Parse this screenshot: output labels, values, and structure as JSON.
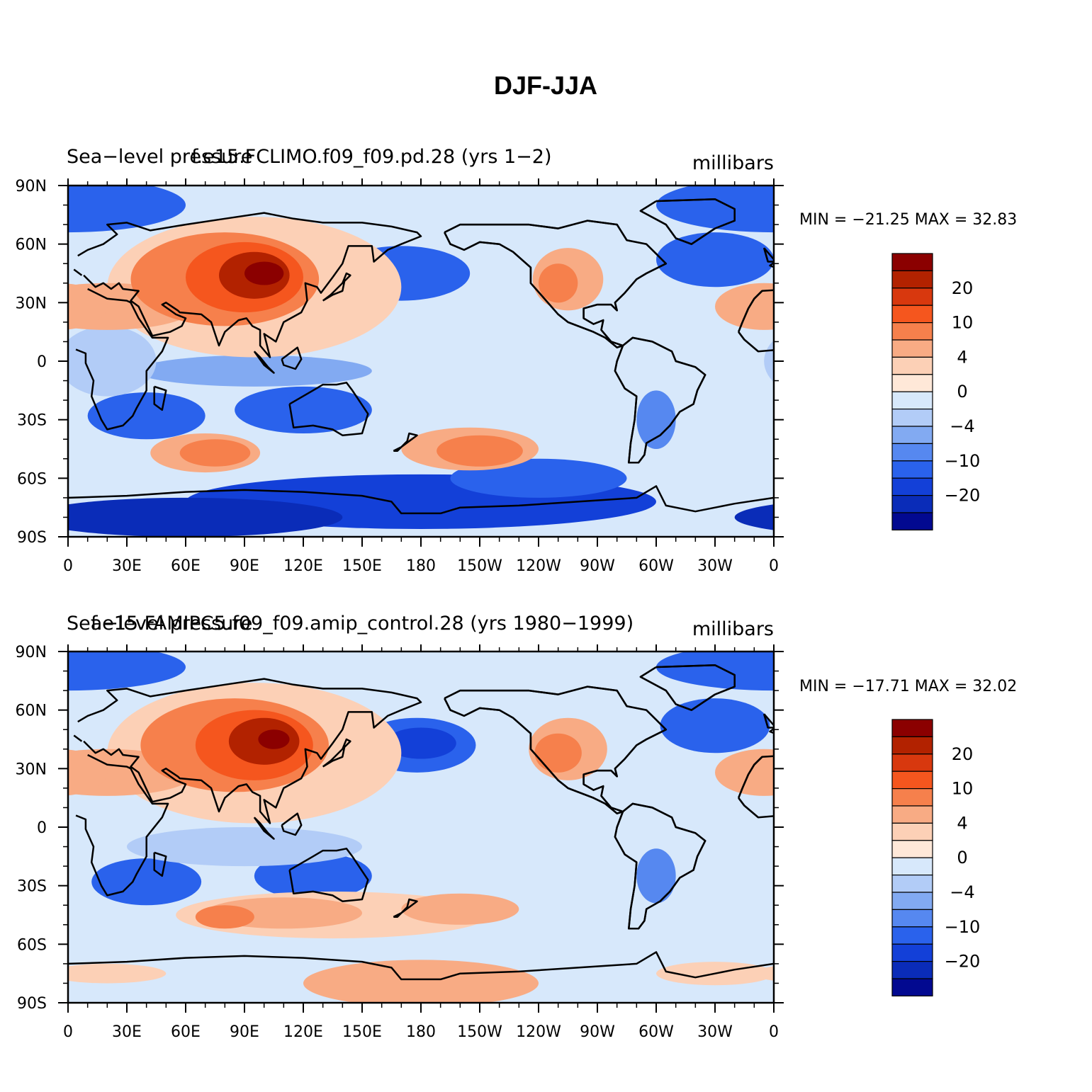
{
  "figure_title": "DJF-JJA",
  "panels": [
    {
      "variable_label": "Sea−level pressure",
      "case_label": "f.e15.FCLIMO.f09_f09.pd.28 (yrs 1−2)",
      "units": "millibars",
      "min_max": "MIN = −21.25  MAX =   32.83",
      "min": -21.25,
      "max": 32.83
    },
    {
      "variable_label": "Sea−level pressure",
      "case_label": "f.e15.FAMIPC5.f09_f09.amip_control.28 (yrs 1980−1999)",
      "units": "millibars",
      "min_max": "MIN = −17.71  MAX =   32.02",
      "min": -17.71,
      "max": 32.02
    }
  ],
  "lon_ticks": [
    "0",
    "30E",
    "60E",
    "90E",
    "120E",
    "150E",
    "180",
    "150W",
    "120W",
    "90W",
    "60W",
    "30W",
    "0"
  ],
  "lat_ticks": [
    "90N",
    "60N",
    "30N",
    "0",
    "30S",
    "60S",
    "90S"
  ],
  "colorbar": {
    "labels": [
      "20",
      "10",
      "4",
      "0",
      "−4",
      "−10",
      "−20"
    ],
    "colors": [
      "#8b0000",
      "#b22200",
      "#d8380e",
      "#f5561e",
      "#f6804c",
      "#f8ab84",
      "#fcd0b6",
      "#ffe8d8",
      "#d7e8fb",
      "#b2ccf7",
      "#82aaf2",
      "#5688f0",
      "#2a62ec",
      "#1340d8",
      "#0a2cb8",
      "#020990"
    ]
  },
  "colors": {
    "background": "#ffffff",
    "coast": "#000000"
  }
}
